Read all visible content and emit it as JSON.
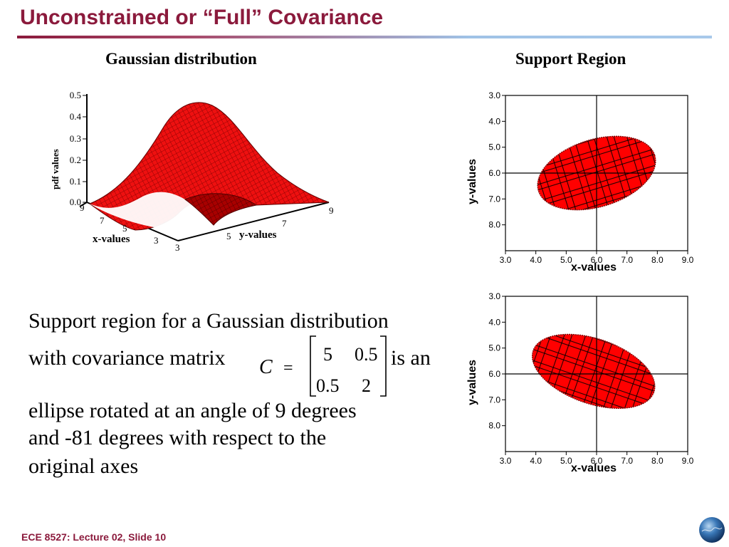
{
  "slide_title": "Unconstrained or “Full” Covariance",
  "footer": "ECE 8527: Lecture 02, Slide 10",
  "colors": {
    "accent": "#8b1a3c",
    "fill": "#ff0000",
    "mesh": "#8a0000"
  },
  "surface_figure": {
    "title": "Gaussian distribution",
    "z_axis_label": "pdf values",
    "z_ticks": [
      "0.5",
      "0.4",
      "0.3",
      "0.2",
      "0.1",
      "0.0"
    ],
    "x_axis_label": "x-values",
    "x_ticks": [
      "9",
      "7",
      "5",
      "3"
    ],
    "y_axis_label": "y-values",
    "y_ticks": [
      "3",
      "5",
      "7",
      "9"
    ]
  },
  "support_title": "Support Region",
  "body": {
    "line1": "Support region for a Gaussian distribution",
    "line2_prefix": "with covariance matrix",
    "matrix_symbol": "C",
    "equals": "=",
    "matrix": [
      [
        "5",
        "0.5"
      ],
      [
        "0.5",
        "2"
      ]
    ],
    "line2_suffix": "is an",
    "line3": "ellipse rotated at an angle of 9 degrees",
    "line4": "and -81 degrees with respect to the",
    "line5": "original axes"
  },
  "chart_data": [
    {
      "type": "scatter",
      "title": "",
      "xlabel": "x-values",
      "ylabel": "y-values",
      "xlim": [
        3.0,
        9.0
      ],
      "ylim": [
        3.0,
        9.0
      ],
      "y_axis_inverted": true,
      "x_ticks": [
        "3.0",
        "4.0",
        "5.0",
        "6.0",
        "7.0",
        "8.0",
        "9.0"
      ],
      "y_ticks": [
        "3.0",
        "4.0",
        "5.0",
        "6.0",
        "7.0",
        "8.0"
      ],
      "crosshair": {
        "x": 6.0,
        "y": 6.0
      },
      "ellipse": {
        "cx": 6.0,
        "cy": 6.0,
        "a": 2.0,
        "b": 1.3,
        "angle_deg": -17
      }
    },
    {
      "type": "scatter",
      "title": "",
      "xlabel": "x-values",
      "ylabel": "y-values",
      "xlim": [
        3.0,
        9.0
      ],
      "ylim": [
        3.0,
        9.0
      ],
      "y_axis_inverted": true,
      "x_ticks": [
        "3.0",
        "4.0",
        "5.0",
        "6.0",
        "7.0",
        "8.0",
        "9.0"
      ],
      "y_ticks": [
        "3.0",
        "4.0",
        "5.0",
        "6.0",
        "7.0",
        "8.0"
      ],
      "crosshair": {
        "x": 6.0,
        "y": 6.0
      },
      "ellipse": {
        "cx": 5.9,
        "cy": 5.9,
        "a": 2.1,
        "b": 1.25,
        "angle_deg": 19
      }
    }
  ]
}
